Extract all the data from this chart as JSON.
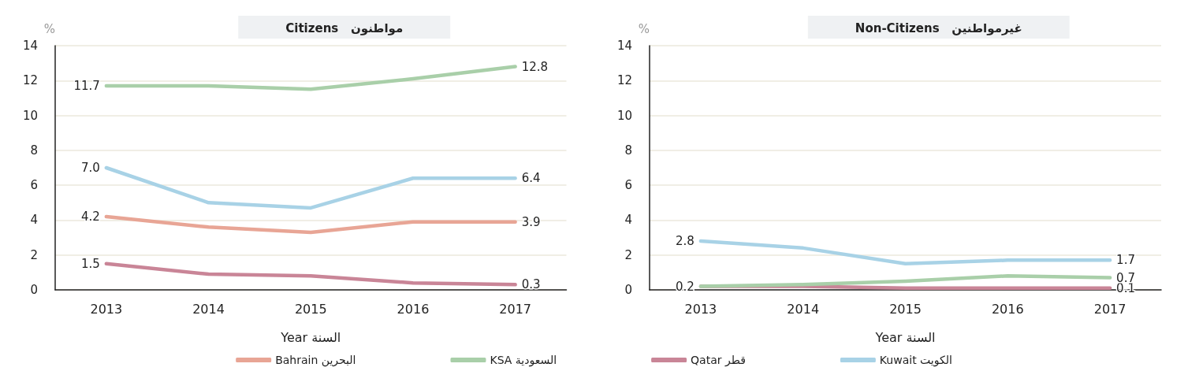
{
  "chart_data": [
    {
      "type": "line",
      "title": "Citizens   مواطنون",
      "xlabel": "Year السنة",
      "ylabel": "%",
      "categories": [
        "2013",
        "2014",
        "2015",
        "2016",
        "2017"
      ],
      "ylim": [
        0,
        14
      ],
      "yticks": [
        0,
        2,
        4,
        6,
        8,
        10,
        12,
        14
      ],
      "grid": "y",
      "legend": "bottom",
      "marker": "none",
      "line_style": "solid",
      "series": [
        {
          "name": "Bahrain البحرين",
          "color": "#e8a595",
          "values": [
            4.2,
            3.6,
            3.3,
            3.9,
            3.9
          ],
          "value_labels": [
            "4.2",
            null,
            null,
            null,
            "3.9"
          ]
        },
        {
          "name": "KSA السعودية",
          "color": "#a9cfa9",
          "values": [
            11.7,
            11.7,
            11.5,
            12.1,
            12.8
          ],
          "value_labels": [
            "11.7",
            null,
            null,
            null,
            "12.8"
          ]
        },
        {
          "name": "Qatar قطر",
          "color": "#c98597",
          "values": [
            1.5,
            0.9,
            0.8,
            0.4,
            0.3
          ],
          "value_labels": [
            "1.5",
            null,
            null,
            null,
            "0.3"
          ]
        },
        {
          "name": "Kuwait الكويت",
          "color": "#a8d2e6",
          "values": [
            7.0,
            5.0,
            4.7,
            6.4,
            6.4
          ],
          "value_labels": [
            "7.0",
            null,
            null,
            null,
            "6.4"
          ]
        }
      ]
    },
    {
      "type": "line",
      "title": "Non-Citizens   غيرمواطنين",
      "xlabel": "Year السنة",
      "ylabel": "%",
      "categories": [
        "2013",
        "2014",
        "2015",
        "2016",
        "2017"
      ],
      "ylim": [
        0,
        14
      ],
      "yticks": [
        0,
        2,
        4,
        6,
        8,
        10,
        12,
        14
      ],
      "grid": "y",
      "marker": "none",
      "line_style": "solid",
      "series": [
        {
          "color": "#c98597",
          "values": [
            0.2,
            0.2,
            0.1,
            0.1,
            0.1
          ],
          "value_labels": [
            "0.2",
            null,
            null,
            null,
            "0.1"
          ]
        },
        {
          "color": "#a8d2e6",
          "values": [
            2.8,
            2.4,
            1.5,
            1.7,
            1.7
          ],
          "value_labels": [
            "2.8",
            null,
            null,
            null,
            "1.7"
          ]
        },
        {
          "color": "#a9cfa9",
          "values": [
            0.2,
            0.3,
            0.5,
            0.8,
            0.7
          ],
          "value_labels": [
            null,
            null,
            null,
            null,
            "0.7"
          ]
        }
      ]
    }
  ]
}
